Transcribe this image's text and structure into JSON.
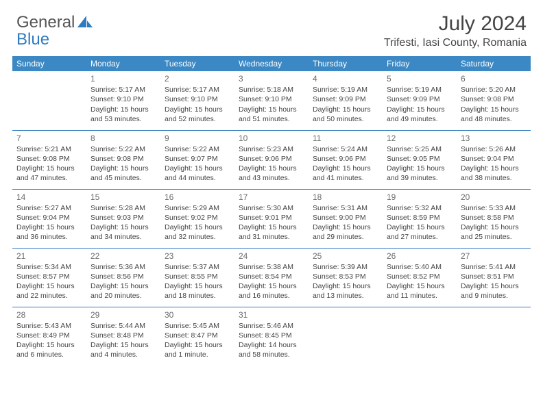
{
  "brand": {
    "part1": "General",
    "part2": "Blue"
  },
  "title": "July 2024",
  "location": "Trifesti, Iasi County, Romania",
  "dow": [
    "Sunday",
    "Monday",
    "Tuesday",
    "Wednesday",
    "Thursday",
    "Friday",
    "Saturday"
  ],
  "colors": {
    "header_bg": "#3b88c4",
    "header_text": "#ffffff",
    "rule": "#2f7bbf",
    "logo_gray": "#555555",
    "logo_blue": "#2f7bbf",
    "text": "#444444"
  },
  "weeks": [
    [
      null,
      {
        "n": "1",
        "sunrise": "Sunrise: 5:17 AM",
        "sunset": "Sunset: 9:10 PM",
        "day1": "Daylight: 15 hours",
        "day2": "and 53 minutes."
      },
      {
        "n": "2",
        "sunrise": "Sunrise: 5:17 AM",
        "sunset": "Sunset: 9:10 PM",
        "day1": "Daylight: 15 hours",
        "day2": "and 52 minutes."
      },
      {
        "n": "3",
        "sunrise": "Sunrise: 5:18 AM",
        "sunset": "Sunset: 9:10 PM",
        "day1": "Daylight: 15 hours",
        "day2": "and 51 minutes."
      },
      {
        "n": "4",
        "sunrise": "Sunrise: 5:19 AM",
        "sunset": "Sunset: 9:09 PM",
        "day1": "Daylight: 15 hours",
        "day2": "and 50 minutes."
      },
      {
        "n": "5",
        "sunrise": "Sunrise: 5:19 AM",
        "sunset": "Sunset: 9:09 PM",
        "day1": "Daylight: 15 hours",
        "day2": "and 49 minutes."
      },
      {
        "n": "6",
        "sunrise": "Sunrise: 5:20 AM",
        "sunset": "Sunset: 9:08 PM",
        "day1": "Daylight: 15 hours",
        "day2": "and 48 minutes."
      }
    ],
    [
      {
        "n": "7",
        "sunrise": "Sunrise: 5:21 AM",
        "sunset": "Sunset: 9:08 PM",
        "day1": "Daylight: 15 hours",
        "day2": "and 47 minutes."
      },
      {
        "n": "8",
        "sunrise": "Sunrise: 5:22 AM",
        "sunset": "Sunset: 9:08 PM",
        "day1": "Daylight: 15 hours",
        "day2": "and 45 minutes."
      },
      {
        "n": "9",
        "sunrise": "Sunrise: 5:22 AM",
        "sunset": "Sunset: 9:07 PM",
        "day1": "Daylight: 15 hours",
        "day2": "and 44 minutes."
      },
      {
        "n": "10",
        "sunrise": "Sunrise: 5:23 AM",
        "sunset": "Sunset: 9:06 PM",
        "day1": "Daylight: 15 hours",
        "day2": "and 43 minutes."
      },
      {
        "n": "11",
        "sunrise": "Sunrise: 5:24 AM",
        "sunset": "Sunset: 9:06 PM",
        "day1": "Daylight: 15 hours",
        "day2": "and 41 minutes."
      },
      {
        "n": "12",
        "sunrise": "Sunrise: 5:25 AM",
        "sunset": "Sunset: 9:05 PM",
        "day1": "Daylight: 15 hours",
        "day2": "and 39 minutes."
      },
      {
        "n": "13",
        "sunrise": "Sunrise: 5:26 AM",
        "sunset": "Sunset: 9:04 PM",
        "day1": "Daylight: 15 hours",
        "day2": "and 38 minutes."
      }
    ],
    [
      {
        "n": "14",
        "sunrise": "Sunrise: 5:27 AM",
        "sunset": "Sunset: 9:04 PM",
        "day1": "Daylight: 15 hours",
        "day2": "and 36 minutes."
      },
      {
        "n": "15",
        "sunrise": "Sunrise: 5:28 AM",
        "sunset": "Sunset: 9:03 PM",
        "day1": "Daylight: 15 hours",
        "day2": "and 34 minutes."
      },
      {
        "n": "16",
        "sunrise": "Sunrise: 5:29 AM",
        "sunset": "Sunset: 9:02 PM",
        "day1": "Daylight: 15 hours",
        "day2": "and 32 minutes."
      },
      {
        "n": "17",
        "sunrise": "Sunrise: 5:30 AM",
        "sunset": "Sunset: 9:01 PM",
        "day1": "Daylight: 15 hours",
        "day2": "and 31 minutes."
      },
      {
        "n": "18",
        "sunrise": "Sunrise: 5:31 AM",
        "sunset": "Sunset: 9:00 PM",
        "day1": "Daylight: 15 hours",
        "day2": "and 29 minutes."
      },
      {
        "n": "19",
        "sunrise": "Sunrise: 5:32 AM",
        "sunset": "Sunset: 8:59 PM",
        "day1": "Daylight: 15 hours",
        "day2": "and 27 minutes."
      },
      {
        "n": "20",
        "sunrise": "Sunrise: 5:33 AM",
        "sunset": "Sunset: 8:58 PM",
        "day1": "Daylight: 15 hours",
        "day2": "and 25 minutes."
      }
    ],
    [
      {
        "n": "21",
        "sunrise": "Sunrise: 5:34 AM",
        "sunset": "Sunset: 8:57 PM",
        "day1": "Daylight: 15 hours",
        "day2": "and 22 minutes."
      },
      {
        "n": "22",
        "sunrise": "Sunrise: 5:36 AM",
        "sunset": "Sunset: 8:56 PM",
        "day1": "Daylight: 15 hours",
        "day2": "and 20 minutes."
      },
      {
        "n": "23",
        "sunrise": "Sunrise: 5:37 AM",
        "sunset": "Sunset: 8:55 PM",
        "day1": "Daylight: 15 hours",
        "day2": "and 18 minutes."
      },
      {
        "n": "24",
        "sunrise": "Sunrise: 5:38 AM",
        "sunset": "Sunset: 8:54 PM",
        "day1": "Daylight: 15 hours",
        "day2": "and 16 minutes."
      },
      {
        "n": "25",
        "sunrise": "Sunrise: 5:39 AM",
        "sunset": "Sunset: 8:53 PM",
        "day1": "Daylight: 15 hours",
        "day2": "and 13 minutes."
      },
      {
        "n": "26",
        "sunrise": "Sunrise: 5:40 AM",
        "sunset": "Sunset: 8:52 PM",
        "day1": "Daylight: 15 hours",
        "day2": "and 11 minutes."
      },
      {
        "n": "27",
        "sunrise": "Sunrise: 5:41 AM",
        "sunset": "Sunset: 8:51 PM",
        "day1": "Daylight: 15 hours",
        "day2": "and 9 minutes."
      }
    ],
    [
      {
        "n": "28",
        "sunrise": "Sunrise: 5:43 AM",
        "sunset": "Sunset: 8:49 PM",
        "day1": "Daylight: 15 hours",
        "day2": "and 6 minutes."
      },
      {
        "n": "29",
        "sunrise": "Sunrise: 5:44 AM",
        "sunset": "Sunset: 8:48 PM",
        "day1": "Daylight: 15 hours",
        "day2": "and 4 minutes."
      },
      {
        "n": "30",
        "sunrise": "Sunrise: 5:45 AM",
        "sunset": "Sunset: 8:47 PM",
        "day1": "Daylight: 15 hours",
        "day2": "and 1 minute."
      },
      {
        "n": "31",
        "sunrise": "Sunrise: 5:46 AM",
        "sunset": "Sunset: 8:45 PM",
        "day1": "Daylight: 14 hours",
        "day2": "and 58 minutes."
      },
      null,
      null,
      null
    ]
  ]
}
